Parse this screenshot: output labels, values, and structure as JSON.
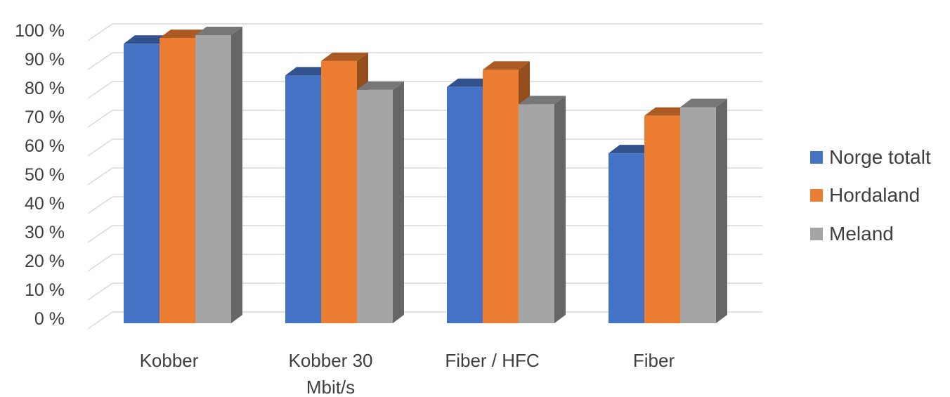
{
  "chart_data": {
    "type": "bar",
    "style": "3d-clustered-column",
    "categories": [
      [
        "Kobber"
      ],
      [
        "Kobber  30",
        "Mbit/s"
      ],
      [
        "Fiber / HFC"
      ],
      [
        "Fiber"
      ]
    ],
    "series": [
      {
        "name": "Norge totalt",
        "color": "#4472C4",
        "values": [
          97,
          86,
          82,
          59
        ]
      },
      {
        "name": "Hordaland",
        "color": "#ED7D31",
        "values": [
          99,
          91,
          88,
          72
        ]
      },
      {
        "name": "Meland",
        "color": "#A5A5A5",
        "values": [
          100,
          81,
          76,
          75
        ]
      }
    ],
    "ylim": [
      0,
      100
    ],
    "yticks": [
      0,
      10,
      20,
      30,
      40,
      50,
      60,
      70,
      80,
      90,
      100
    ],
    "ytick_labels": [
      "0 %",
      "10 %",
      "20 %",
      "30 %",
      "40 %",
      "50 %",
      "60 %",
      "70 %",
      "80 %",
      "90 %",
      "100 %"
    ],
    "grid": true,
    "legend_position": "right"
  }
}
